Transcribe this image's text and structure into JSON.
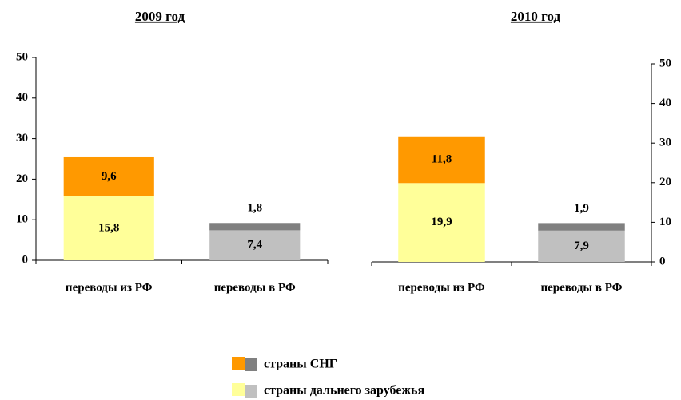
{
  "chart_data": [
    {
      "type": "bar",
      "stacked": true,
      "title": "2009 год",
      "y_axis_side": "left",
      "categories": [
        "переводы из РФ",
        "переводы в РФ"
      ],
      "series": [
        {
          "name": "страны дальнего зарубежья",
          "colors": [
            "#ffff99",
            "#c0c0c0"
          ],
          "label_colors": [
            "#000000",
            "#ffffff"
          ],
          "values": [
            15.8,
            7.4
          ],
          "value_labels": [
            "15,8",
            "7,4"
          ]
        },
        {
          "name": "страны СНГ",
          "colors": [
            "#ff9900",
            "#808080"
          ],
          "label_colors": [
            "#000000",
            "#000000"
          ],
          "values": [
            9.6,
            1.8
          ],
          "value_labels": [
            "9,6",
            "1,8"
          ]
        }
      ],
      "ylim": [
        0,
        50
      ],
      "yticks": [
        0,
        10,
        20,
        30,
        40,
        50
      ]
    },
    {
      "type": "bar",
      "stacked": true,
      "title": "2010 год",
      "y_axis_side": "right",
      "categories": [
        "переводы из РФ",
        "переводы в РФ"
      ],
      "series": [
        {
          "name": "страны дальнего зарубежья",
          "colors": [
            "#ffff99",
            "#c0c0c0"
          ],
          "label_colors": [
            "#000000",
            "#ffffff"
          ],
          "values": [
            19.9,
            7.9
          ],
          "value_labels": [
            "19,9",
            "7,9"
          ]
        },
        {
          "name": "страны СНГ",
          "colors": [
            "#ff9900",
            "#808080"
          ],
          "label_colors": [
            "#000000",
            "#000000"
          ],
          "values": [
            11.8,
            1.9
          ],
          "value_labels": [
            "11,8",
            "1,9"
          ]
        }
      ],
      "ylim": [
        0,
        50
      ],
      "yticks": [
        0,
        10,
        20,
        30,
        40,
        50
      ]
    }
  ]
}
